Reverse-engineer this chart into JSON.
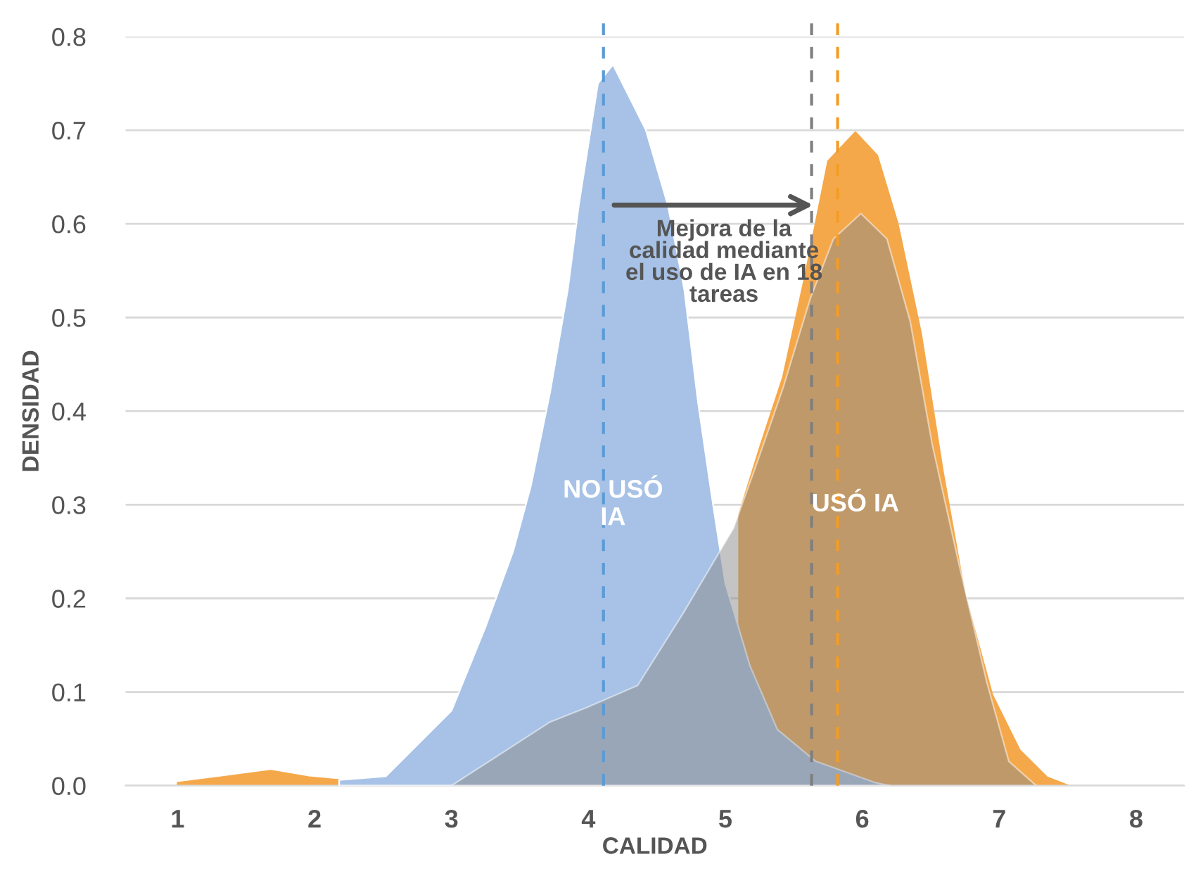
{
  "chart_data": {
    "type": "area",
    "xlabel": "CALIDAD",
    "ylabel": "DENSIDAD",
    "xlim": [
      0.62,
      8.35
    ],
    "xticks": [
      1,
      2,
      3,
      4,
      5,
      6,
      7,
      8
    ],
    "ylim": [
      0,
      0.8
    ],
    "yticks": [
      {
        "value": 0,
        "label": "0.0"
      },
      0.1,
      0.2,
      0.3,
      0.4,
      0.5,
      0.6,
      0.7,
      0.8
    ],
    "grid": "y",
    "legend": false,
    "series": [
      {
        "name": "USÓ IA",
        "color": "#f5a84a",
        "x": [
          1.0,
          1.32,
          1.68,
          1.96,
          2.18,
          2.3,
          4.9,
          5.1,
          5.26,
          5.42,
          5.58,
          5.75,
          5.95,
          6.11,
          6.26,
          6.43,
          6.59,
          6.75,
          6.95,
          7.15,
          7.35,
          7.51
        ],
        "values": [
          0.003,
          0.009,
          0.016,
          0.009,
          0.006,
          null,
          null,
          0.29,
          0.365,
          0.436,
          0.543,
          0.667,
          0.698,
          0.673,
          0.6,
          0.483,
          0.335,
          0.204,
          0.097,
          0.038,
          0.009,
          0
        ]
      },
      {
        "name": "NO USÓ IA",
        "color": "#a7c2e6",
        "x": [
          2.18,
          2.52,
          3.0,
          3.25,
          3.45,
          3.58,
          3.72,
          3.85,
          3.93,
          4.07,
          4.18,
          4.42,
          4.58,
          4.7,
          4.8,
          4.9,
          5.0,
          5.18,
          5.38,
          5.66,
          6.1,
          6.2
        ],
        "values": [
          0.006,
          0.01,
          0.08,
          0.17,
          0.25,
          0.32,
          0.42,
          0.53,
          0.62,
          0.75,
          0.77,
          0.7,
          0.62,
          0.53,
          0.41,
          0.31,
          0.216,
          0.128,
          0.06,
          0.026,
          0.003,
          0
        ]
      },
      {
        "color": "#8a8a8a",
        "x": [
          3.0,
          3.72,
          3.98,
          4.36,
          4.7,
          5.06,
          5.22,
          5.42,
          5.62,
          5.79,
          5.99,
          6.18,
          6.35,
          6.51,
          6.71,
          6.91,
          7.07,
          7.27
        ],
        "values": [
          0,
          0.068,
          0.083,
          0.107,
          0.186,
          0.275,
          0.34,
          0.424,
          0.52,
          0.584,
          0.611,
          0.584,
          0.496,
          0.365,
          0.234,
          0.11,
          0.026,
          0
        ]
      }
    ],
    "ref_lines": [
      {
        "axis": "x",
        "value": 4.11,
        "color": "#5b9bd5",
        "line_style": "dashed"
      },
      {
        "axis": "x",
        "value": 5.63,
        "color": "#7f7f7f",
        "line_style": "dashed"
      },
      {
        "axis": "x",
        "value": 5.82,
        "color": "#f39c26",
        "line_style": "dashed"
      }
    ],
    "annotations": [
      {
        "text": "Mejora de la calidad mediante el uso de IA en 18 tareas",
        "x": 5.67,
        "y": 0.62
      }
    ]
  }
}
